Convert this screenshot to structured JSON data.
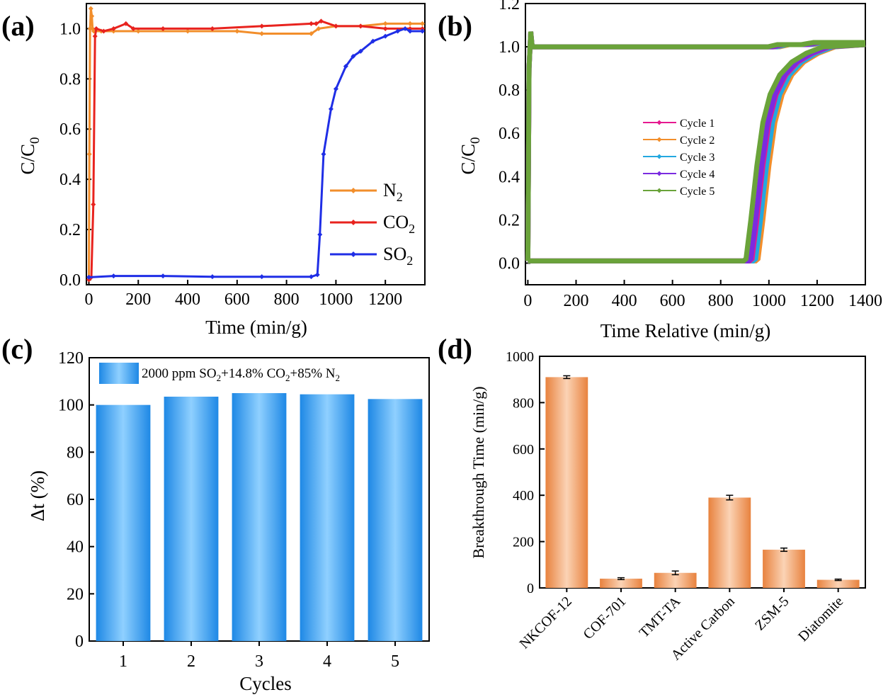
{
  "chart_data": [
    {
      "panel": "(a)",
      "type": "line",
      "xlabel": "Time (min/g)",
      "ylabel": "C/C0",
      "xlim": [
        -10,
        1360
      ],
      "ylim": [
        -0.02,
        1.1
      ],
      "xticks": [
        "0",
        "200",
        "400",
        "600",
        "800",
        "1000",
        "1200"
      ],
      "yticks": [
        "0.0",
        "0.2",
        "0.4",
        "0.6",
        "0.8",
        "1.0"
      ],
      "legend_position": "lower-right",
      "series": [
        {
          "name": "N2",
          "color": "#F28E2B",
          "x": [
            0,
            2,
            5,
            8,
            12,
            15,
            20,
            50,
            100,
            200,
            400,
            600,
            700,
            900,
            930,
            1000,
            1100,
            1200,
            1300,
            1350
          ],
          "y": [
            0.0,
            0.5,
            1.0,
            1.08,
            1.05,
            1.0,
            0.99,
            0.99,
            0.99,
            0.99,
            0.99,
            0.99,
            0.98,
            0.98,
            1.0,
            1.01,
            1.01,
            1.02,
            1.02,
            1.02
          ]
        },
        {
          "name": "CO2",
          "color": "#E8231E",
          "x": [
            0,
            10,
            18,
            25,
            30,
            60,
            100,
            150,
            180,
            300,
            500,
            700,
            900,
            920,
            940,
            1000,
            1100,
            1200,
            1300,
            1350
          ],
          "y": [
            0.0,
            0.01,
            0.3,
            0.97,
            1.0,
            0.99,
            1.0,
            1.02,
            1.0,
            1.0,
            1.0,
            1.01,
            1.02,
            1.02,
            1.03,
            1.01,
            1.01,
            1.0,
            1.0,
            1.0
          ]
        },
        {
          "name": "SO2",
          "color": "#1F2EE6",
          "x": [
            0,
            100,
            300,
            500,
            700,
            900,
            925,
            935,
            950,
            980,
            1000,
            1040,
            1070,
            1100,
            1150,
            1200,
            1250,
            1280,
            1300,
            1350
          ],
          "y": [
            0.01,
            0.015,
            0.015,
            0.012,
            0.012,
            0.012,
            0.02,
            0.18,
            0.5,
            0.68,
            0.76,
            0.85,
            0.89,
            0.91,
            0.95,
            0.97,
            0.99,
            1.0,
            0.99,
            0.99
          ]
        }
      ]
    },
    {
      "panel": "(b)",
      "type": "line",
      "xlabel": "Time Relative (min/g)",
      "ylabel": "C/C0",
      "xlim": [
        -10,
        1400
      ],
      "ylim": [
        -0.1,
        1.2
      ],
      "xticks": [
        "0",
        "200",
        "400",
        "600",
        "800",
        "1000",
        "1200",
        "1400"
      ],
      "yticks": [
        "0.0",
        "0.2",
        "0.4",
        "0.6",
        "0.8",
        "1.0",
        "1.2"
      ],
      "legend_position": "center-left",
      "series": [
        {
          "name": "Cycle 1",
          "color": "#E6198F",
          "breakthrough": 930
        },
        {
          "name": "Cycle 2",
          "color": "#F28E2B",
          "breakthrough": 955
        },
        {
          "name": "Cycle 3",
          "color": "#23A8E0",
          "breakthrough": 945
        },
        {
          "name": "Cycle 4",
          "color": "#7B2BE0",
          "breakthrough": 925
        },
        {
          "name": "Cycle 5",
          "color": "#6AA33A",
          "breakthrough": 905
        }
      ]
    },
    {
      "panel": "(c)",
      "type": "bar",
      "xlabel": "Cycles",
      "ylabel": "Δt (%)",
      "ylim": [
        0,
        120
      ],
      "yticks": [
        "0",
        "20",
        "40",
        "60",
        "80",
        "100",
        "120"
      ],
      "categories": [
        "1",
        "2",
        "3",
        "4",
        "5"
      ],
      "series": [
        {
          "name": "2000 ppm SO2+14.8% CO2+85% N2",
          "color": "#2E9BEF",
          "values": [
            100,
            103.5,
            105,
            104.5,
            102.5
          ]
        }
      ]
    },
    {
      "panel": "(d)",
      "type": "bar",
      "xlabel": "",
      "ylabel": "Breakthrough Time (min/g)",
      "ylim": [
        0,
        1000
      ],
      "yticks": [
        "0",
        "200",
        "400",
        "600",
        "800",
        "1000"
      ],
      "categories": [
        "NKCOF-12",
        "COF-701",
        "TMT-TA",
        "Active Carbon",
        "ZSM-5",
        "Diatomite"
      ],
      "values": [
        910,
        40,
        65,
        390,
        165,
        35
      ],
      "errors": [
        6,
        4,
        8,
        10,
        7,
        3
      ],
      "color": "#F0A070"
    }
  ],
  "labels": {
    "a": {
      "letter": "(a)",
      "xlabel": "Time (min/g)",
      "ylabel_main": "C/C",
      "ylabel_sub": "0",
      "leg": [
        {
          "main": "N",
          "sub": "2"
        },
        {
          "main": "CO",
          "sub": "2"
        },
        {
          "main": "SO",
          "sub": "2"
        }
      ]
    },
    "b": {
      "letter": "(b)",
      "xlabel": "Time Relative (min/g)",
      "ylabel_main": "C/C",
      "ylabel_sub": "0",
      "leg": [
        "Cycle 1",
        "Cycle 2",
        "Cycle 3",
        "Cycle 4",
        "Cycle 5"
      ]
    },
    "c": {
      "letter": "(c)",
      "xlabel": "Cycles",
      "ylabel": "Δt (%)",
      "leg_parts": [
        "2000 ppm SO",
        "2",
        "+14.8% CO",
        "2",
        "+85% N",
        "2"
      ]
    },
    "d": {
      "letter": "(d)",
      "ylabel": "Breakthrough Time (min/g)"
    }
  }
}
